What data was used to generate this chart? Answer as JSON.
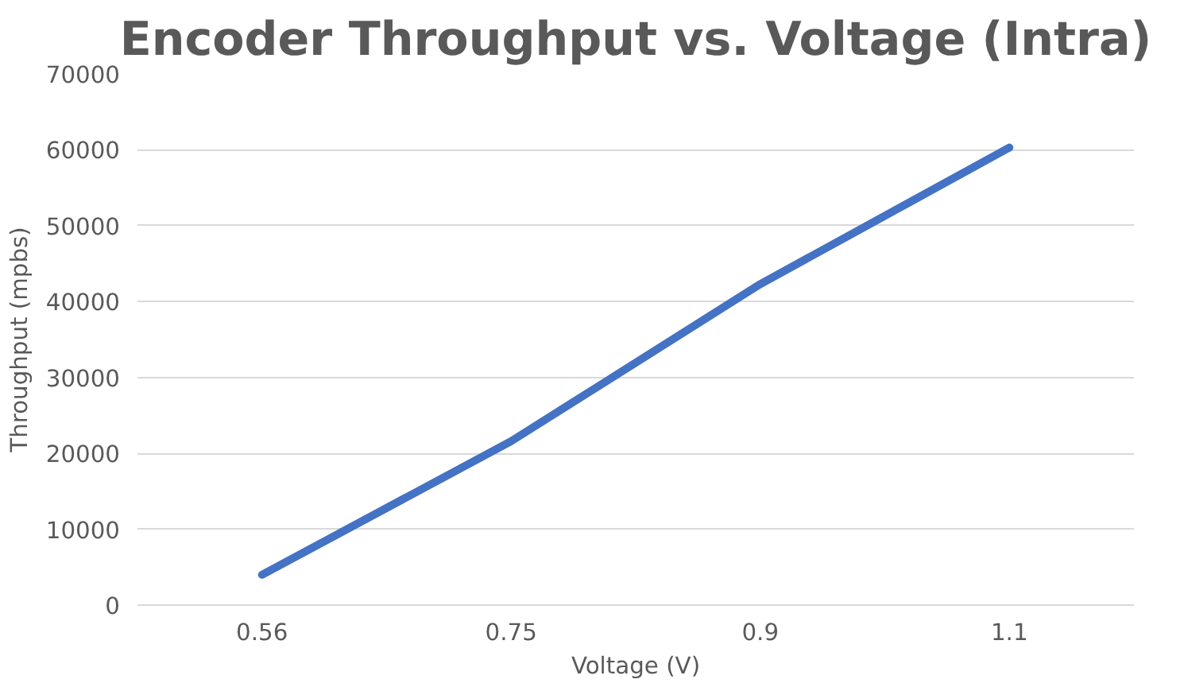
{
  "chart_data": {
    "type": "line",
    "title": "Encoder Throughput vs. Voltage (Intra)",
    "xlabel": "Voltage (V)",
    "ylabel": "Throughput (mpbs)",
    "categories": [
      "0.56",
      "0.75",
      "0.9",
      "1.1"
    ],
    "series": [
      {
        "color": "#4472c4",
        "values": [
          4000,
          21600,
          42300,
          60300
        ]
      }
    ],
    "ylim": [
      0,
      70000
    ],
    "yticks": [
      0,
      10000,
      20000,
      30000,
      40000,
      50000,
      60000,
      70000
    ],
    "grid": "y",
    "marker": "none",
    "line_style": "solid"
  }
}
